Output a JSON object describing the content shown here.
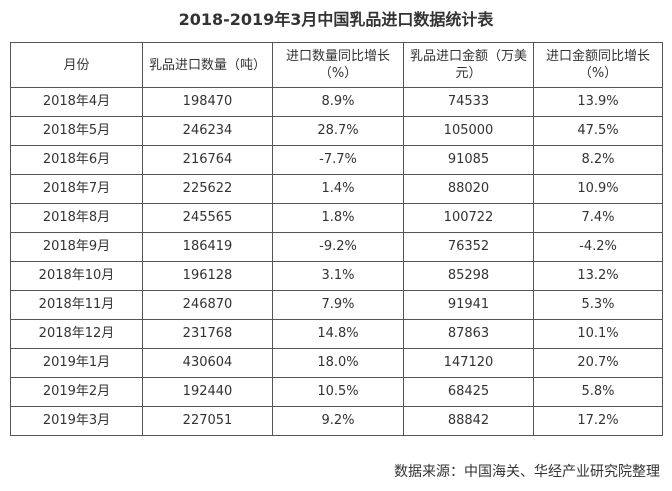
{
  "title": "2018-2019年3月中国乳品进口数据统计表",
  "table": {
    "headers": [
      "月份",
      "乳品进口数量（吨）",
      "进口数量同比增长（%）",
      "乳品进口金额（万美元）",
      "进口金额同比增长（%）"
    ],
    "rows": [
      [
        "2018年4月",
        "198470",
        "8.9%",
        "74533",
        "13.9%"
      ],
      [
        "2018年5月",
        "246234",
        "28.7%",
        "105000",
        "47.5%"
      ],
      [
        "2018年6月",
        "216764",
        "-7.7%",
        "91085",
        "8.2%"
      ],
      [
        "2018年7月",
        "225622",
        "1.4%",
        "88020",
        "10.9%"
      ],
      [
        "2018年8月",
        "245565",
        "1.8%",
        "100722",
        "7.4%"
      ],
      [
        "2018年9月",
        "186419",
        "-9.2%",
        "76352",
        "-4.2%"
      ],
      [
        "2018年10月",
        "196128",
        "3.1%",
        "85298",
        "13.2%"
      ],
      [
        "2018年11月",
        "246870",
        "7.9%",
        "91941",
        "5.3%"
      ],
      [
        "2018年12月",
        "231768",
        "14.8%",
        "87863",
        "10.1%"
      ],
      [
        "2019年1月",
        "430604",
        "18.0%",
        "147120",
        "20.7%"
      ],
      [
        "2019年2月",
        "192440",
        "10.5%",
        "68425",
        "5.8%"
      ],
      [
        "2019年3月",
        "227051",
        "9.2%",
        "88842",
        "17.2%"
      ]
    ]
  },
  "source": "数据来源：中国海关、华经产业研究院整理"
}
